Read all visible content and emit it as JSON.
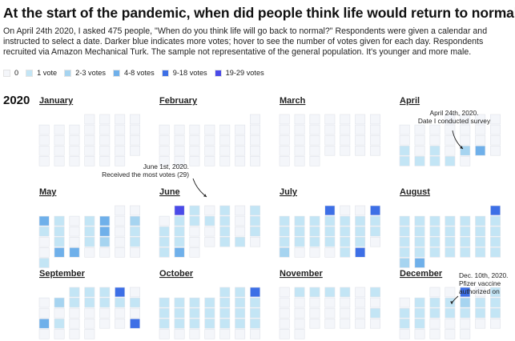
{
  "title": "At the start of the pandemic, when did people think life would return to normal?",
  "intro": "On April 24th 2020, I asked 475 people, \"When do you think life will go back to normal?\" Respondents were given a calendar and instructed to select a date. Darker blue indicates more votes; hover to see the number of votes given for each day. Respondents recruited via Amazon Mechanical Turk. The sample not representative of the general population. It's younger and more male.",
  "legend": [
    {
      "label": "0",
      "color": "#f4f6fa"
    },
    {
      "label": "1 vote",
      "color": "#c3e5f5"
    },
    {
      "label": "2-3 votes",
      "color": "#a6d4f0"
    },
    {
      "label": "4-8 votes",
      "color": "#6fb0ea"
    },
    {
      "label": "9-18 votes",
      "color": "#3d6fe6"
    },
    {
      "label": "19-29 votes",
      "color": "#4a4ae8"
    }
  ],
  "chart_data": {
    "type": "heatmap",
    "year": "2020",
    "levels": [
      "0",
      "1 vote",
      "2-3 votes",
      "4-8 votes",
      "9-18 votes",
      "19-29 votes"
    ],
    "months": [
      {
        "name": "January",
        "days": 31,
        "start_weekday": 3,
        "votes": {}
      },
      {
        "name": "February",
        "days": 29,
        "start_weekday": 6,
        "votes": {}
      },
      {
        "name": "March",
        "days": 31,
        "start_weekday": 0,
        "votes": {}
      },
      {
        "name": "April",
        "days": 30,
        "start_weekday": 3,
        "votes": {
          "19": 1,
          "21": 1,
          "23": 3,
          "24": 4,
          "26": 1,
          "27": 1,
          "28": 1,
          "29": 1
        }
      },
      {
        "name": "May",
        "days": 31,
        "start_weekday": 5,
        "votes": {
          "3": 4,
          "4": 1,
          "6": 1,
          "7": 4,
          "9": 2,
          "10": 1,
          "11": 1,
          "13": 1,
          "14": 4,
          "16": 1,
          "18": 1,
          "20": 1,
          "21": 2,
          "23": 1,
          "25": 4,
          "26": 6,
          "31": 1
        }
      },
      {
        "name": "June",
        "days": 30,
        "start_weekday": 1,
        "votes": {
          "1": 29,
          "2": 1,
          "4": 1,
          "6": 1,
          "8": 1,
          "9": 1,
          "10": 1,
          "11": 1,
          "13": 1,
          "14": 1,
          "15": 1,
          "18": 1,
          "20": 1,
          "21": 1,
          "22": 1,
          "25": 1,
          "26": 1,
          "28": 1,
          "29": 5
        }
      },
      {
        "name": "July",
        "days": 31,
        "start_weekday": 3,
        "votes": {
          "1": 9,
          "4": 10,
          "5": 1,
          "6": 1,
          "7": 1,
          "8": 1,
          "9": 1,
          "10": 1,
          "11": 1,
          "12": 1,
          "13": 1,
          "14": 1,
          "15": 1,
          "16": 1,
          "17": 1,
          "18": 1,
          "19": 1,
          "20": 1,
          "21": 1,
          "22": 1,
          "23": 1,
          "24": 1,
          "26": 3,
          "30": 1,
          "31": 12
        }
      },
      {
        "name": "August",
        "days": 31,
        "start_weekday": 6,
        "votes": {
          "1": 10,
          "2": 1,
          "3": 1,
          "4": 1,
          "5": 1,
          "6": 1,
          "7": 1,
          "8": 1,
          "9": 1,
          "10": 1,
          "11": 1,
          "12": 1,
          "13": 1,
          "14": 1,
          "15": 1,
          "16": 1,
          "17": 1,
          "18": 1,
          "19": 1,
          "20": 1,
          "21": 1,
          "22": 1,
          "23": 1,
          "24": 1,
          "25": 1,
          "26": 1,
          "27": 1,
          "28": 1,
          "29": 1,
          "30": 3,
          "31": 4
        }
      },
      {
        "name": "September",
        "days": 30,
        "start_weekday": 2,
        "votes": {
          "1": 1,
          "2": 1,
          "3": 1,
          "4": 9,
          "7": 3,
          "8": 1,
          "9": 1,
          "10": 1,
          "11": 1,
          "12": 1,
          "20": 5,
          "21": 1,
          "26": 12
        }
      },
      {
        "name": "October",
        "days": 31,
        "start_weekday": 4,
        "votes": {
          "1": 1,
          "2": 1,
          "3": 9,
          "4": 1,
          "5": 1,
          "6": 1,
          "7": 1,
          "8": 1,
          "9": 1,
          "10": 1,
          "11": 1,
          "12": 1,
          "13": 1,
          "14": 1,
          "15": 1,
          "16": 1,
          "17": 1,
          "18": 1,
          "19": 1,
          "20": 1,
          "21": 1,
          "22": 1,
          "23": 1,
          "24": 1
        }
      },
      {
        "name": "November",
        "days": 30,
        "start_weekday": 0,
        "votes": {
          "2": 1,
          "3": 1,
          "4": 1,
          "5": 1,
          "7": 1,
          "21": 1
        }
      },
      {
        "name": "December",
        "days": 31,
        "start_weekday": 2,
        "votes": {
          "3": 11,
          "5": 1,
          "7": 1,
          "8": 1,
          "9": 1,
          "10": 3,
          "11": 1,
          "12": 1,
          "13": 1,
          "14": 1,
          "15": 1,
          "16": 1,
          "17": 1,
          "18": 1,
          "19": 1,
          "20": 1,
          "21": 1
        }
      }
    ],
    "annotations": [
      {
        "month": 3,
        "day": 24,
        "lines": [
          "April 24th, 2020.",
          "Date I conducted survey"
        ]
      },
      {
        "month": 5,
        "day": 1,
        "lines": [
          "June 1st, 2020.",
          "Received the most votes (29)"
        ]
      },
      {
        "month": 11,
        "day": 10,
        "lines": [
          "Dec. 10th, 2020.",
          "Pfizer vaccine",
          "authorized on"
        ]
      }
    ]
  }
}
